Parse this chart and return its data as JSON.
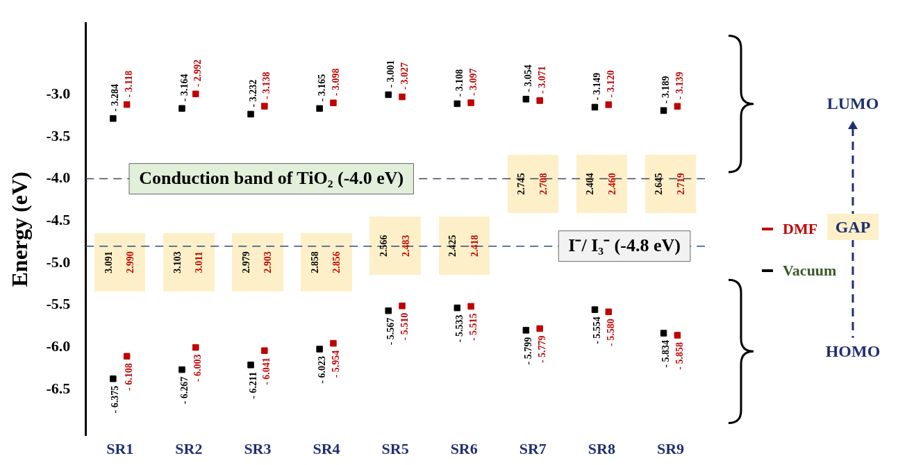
{
  "chart_data": {
    "type": "scatter",
    "ylabel": "Energy (eV)",
    "categories": [
      "SR1",
      "SR2",
      "SR3",
      "SR4",
      "SR5",
      "SR6",
      "SR7",
      "SR8",
      "SR9"
    ],
    "series": [
      {
        "name": "Vacuum",
        "color": "#000000",
        "x": [
          "SR1",
          "SR2",
          "SR3",
          "SR4",
          "SR5",
          "SR6",
          "SR7",
          "SR8",
          "SR9",
          "SR1",
          "SR2",
          "SR3",
          "SR4",
          "SR5",
          "SR6",
          "SR7",
          "SR8",
          "SR9"
        ],
        "values": [
          -3.284,
          -3.164,
          -3.232,
          -3.165,
          -3.001,
          -3.108,
          -3.054,
          -3.149,
          -3.189,
          -6.375,
          -6.267,
          -6.211,
          -6.023,
          -5.567,
          -5.533,
          -5.799,
          -5.554,
          -5.834
        ],
        "value_labels": [
          "- 3.284",
          "- 3.164",
          "- 3.232",
          "- 3.165",
          "- 3.001",
          "- 3.108",
          "- 3.054",
          "- 3.149",
          "- 3.189",
          "- 6.375",
          "- 6.267",
          "- 6.211",
          "- 6.023",
          "- 5.567",
          "- 5.533",
          "- 5.799",
          "- 5.554",
          "- 5.834"
        ]
      },
      {
        "name": "DMF",
        "color": "#c00000",
        "x": [
          "SR1",
          "SR2",
          "SR3",
          "SR4",
          "SR5",
          "SR6",
          "SR7",
          "SR8",
          "SR9",
          "SR1",
          "SR2",
          "SR3",
          "SR4",
          "SR5",
          "SR6",
          "SR7",
          "SR8",
          "SR9"
        ],
        "values": [
          -3.118,
          -2.992,
          -3.138,
          -3.098,
          -3.027,
          -3.097,
          -3.071,
          -3.12,
          -3.139,
          -6.108,
          -6.003,
          -6.041,
          -5.954,
          -5.51,
          -5.515,
          -5.779,
          -5.58,
          -5.858
        ],
        "value_labels": [
          "- 3.118",
          "- 2.992",
          "- 3.138",
          "- 3.098",
          "- 3.027",
          "- 3.097",
          "- 3.071",
          "- 3.120",
          "- 3.139",
          "- 6.108",
          "- 6.003",
          "- 6.041",
          "- 5.954",
          "- 5.510",
          "- 5.515",
          "- 5.779",
          "- 5.580",
          "- 5.858"
        ]
      }
    ],
    "ylim": [
      -7.05,
      -2.15
    ],
    "yticks": [
      {
        "value": -3,
        "label": "-3.0"
      },
      {
        "value": -3.5,
        "label": "-3.5"
      },
      {
        "value": -4,
        "label": "-4.0"
      },
      {
        "value": -4.5,
        "label": "-4.5"
      },
      {
        "value": -5,
        "label": "-5.0"
      },
      {
        "value": -5.5,
        "label": "-5.5"
      },
      {
        "value": -6,
        "label": "-6.0"
      },
      {
        "value": -6.5,
        "label": "-6.5"
      }
    ],
    "grid": false,
    "marker": "square",
    "legend": "right",
    "ref_lines": [
      {
        "axis": "y",
        "value": -4.0,
        "label": "Conduction band of TiO₂ (-4.0 eV)",
        "color": "#3a4660",
        "line_style": "dashed"
      },
      {
        "axis": "y",
        "value": -4.8,
        "label": "I⁻/ I₃⁻ (-4.8 eV)",
        "color": "#2f4a7a",
        "line_style": "dashed"
      }
    ],
    "annotations": [
      "LUMO",
      "GAP",
      "HOMO",
      "3.091",
      "2.990",
      "3.103",
      "3.011",
      "2.979",
      "2.903",
      "2.858",
      "2.856",
      "2.566",
      "2.483",
      "2.425",
      "2.418",
      "2.745",
      "2.708",
      "2.404",
      "2.460",
      "2.645",
      "2.719"
    ]
  }
}
